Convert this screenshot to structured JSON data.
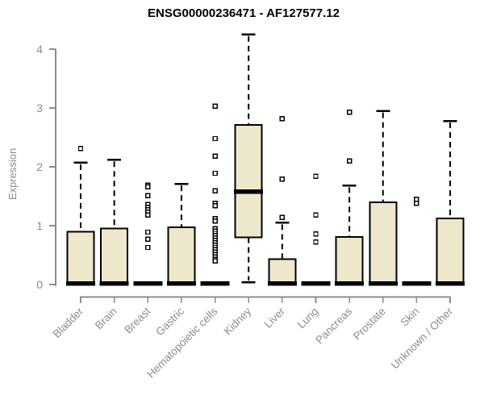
{
  "title": "ENSG00000236471 - AF127577.12",
  "chart_data": {
    "type": "boxplot",
    "title": "ENSG00000236471 - AF127577.12",
    "ylabel": "Expression",
    "xlabel": "",
    "ylim": [
      0,
      4.3
    ],
    "yticks": [
      0,
      1,
      2,
      3,
      4
    ],
    "grid": false,
    "legend": null,
    "colors": {
      "box_fill": "#EDE7CC",
      "box_stroke": "#000000",
      "median": "#000000",
      "whisker": "#000000",
      "axis": "#8C8C8C",
      "tick_label": "#8C8C8C",
      "outlier_fill": "#FFFFFF",
      "outlier_stroke": "#000000",
      "title": "#000000",
      "background": "#FFFFFF"
    },
    "categories": [
      "Bladder",
      "Brain",
      "Breast",
      "Gastric",
      "Hematopoietic cells",
      "Kidney",
      "Liver",
      "Lung",
      "Pancreas",
      "Prostate",
      "Skin",
      "Unknown / Other"
    ],
    "series": [
      {
        "label": "Bladder",
        "whisker_low": 0,
        "q1": 0,
        "median": 0.02,
        "q3": 0.9,
        "whisker_high": 2.07,
        "outliers": [
          2.31
        ]
      },
      {
        "label": "Brain",
        "whisker_low": 0,
        "q1": 0,
        "median": 0.02,
        "q3": 0.95,
        "whisker_high": 2.12,
        "outliers": []
      },
      {
        "label": "Breast",
        "whisker_low": 0,
        "q1": 0,
        "median": 0.02,
        "q3": 0.02,
        "whisker_high": 0.02,
        "outliers": [
          1.69,
          1.66,
          1.51,
          1.36,
          1.31,
          1.27,
          1.23,
          1.18,
          0.89,
          0.77,
          0.63
        ]
      },
      {
        "label": "Gastric",
        "whisker_low": 0,
        "q1": 0,
        "median": 0.02,
        "q3": 0.97,
        "whisker_high": 1.71,
        "outliers": []
      },
      {
        "label": "Hematopoietic cells",
        "whisker_low": 0,
        "q1": 0,
        "median": 0.02,
        "q3": 0.02,
        "whisker_high": 0.02,
        "outliers": [
          3.03,
          2.48,
          2.18,
          1.89,
          1.59,
          1.38,
          1.34,
          1.12,
          1.08,
          0.95,
          0.91,
          0.87,
          0.83,
          0.79,
          0.75,
          0.71,
          0.67,
          0.63,
          0.59,
          0.55,
          0.51,
          0.47,
          0.43,
          0.4
        ]
      },
      {
        "label": "Kidney",
        "whisker_low": 0.04,
        "q1": 0.8,
        "median": 1.58,
        "q3": 2.71,
        "whisker_high": 4.25,
        "outliers": []
      },
      {
        "label": "Liver",
        "whisker_low": 0,
        "q1": 0,
        "median": 0.02,
        "q3": 0.43,
        "whisker_high": 1.05,
        "outliers": [
          2.82,
          1.79,
          1.14
        ]
      },
      {
        "label": "Lung",
        "whisker_low": 0,
        "q1": 0,
        "median": 0.02,
        "q3": 0.02,
        "whisker_high": 0.02,
        "outliers": [
          1.84,
          1.18,
          0.86,
          0.72
        ]
      },
      {
        "label": "Pancreas",
        "whisker_low": 0,
        "q1": 0,
        "median": 0.02,
        "q3": 0.81,
        "whisker_high": 1.68,
        "outliers": [
          2.93,
          2.1
        ]
      },
      {
        "label": "Prostate",
        "whisker_low": 0,
        "q1": 0,
        "median": 0.02,
        "q3": 1.4,
        "whisker_high": 2.95,
        "outliers": []
      },
      {
        "label": "Skin",
        "whisker_low": 0,
        "q1": 0,
        "median": 0.02,
        "q3": 0.02,
        "whisker_high": 0.02,
        "outliers": [
          1.45,
          1.38
        ]
      },
      {
        "label": "Unknown / Other",
        "whisker_low": 0,
        "q1": 0,
        "median": 0.02,
        "q3": 1.12,
        "whisker_high": 2.78,
        "outliers": []
      }
    ]
  }
}
